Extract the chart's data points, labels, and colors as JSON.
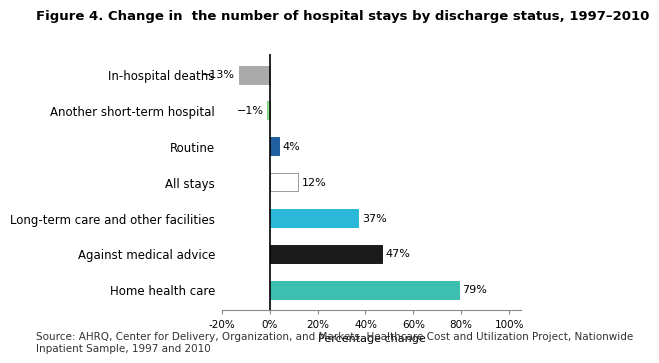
{
  "title": "Figure 4. Change in  the number of hospital stays by discharge status, 1997–2010",
  "categories": [
    "Home health care",
    "Against medical advice",
    "Long-term care and other facilities",
    "All stays",
    "Routine",
    "Another short-term hospital",
    "In-hospital deaths"
  ],
  "values": [
    79,
    47,
    37,
    12,
    4,
    -1,
    -13
  ],
  "bar_colors": [
    "#3CBFB0",
    "#1A1A1A",
    "#29B8D8",
    "#FFFFFF",
    "#2060A0",
    "#90EE90",
    "#AAAAAA"
  ],
  "bar_edgecolors": [
    "#3CBFB0",
    "#1A1A1A",
    "#29B8D8",
    "#999999",
    "#2060A0",
    "#88CC88",
    "#AAAAAA"
  ],
  "value_labels": [
    "79%",
    "47%",
    "37%",
    "12%",
    "4%",
    "−1%",
    "−13%"
  ],
  "xlabel": "Percentage change",
  "xlim": [
    -20,
    105
  ],
  "xtick_values": [
    -20,
    0,
    20,
    40,
    60,
    80,
    100
  ],
  "xtick_labels": [
    "-20%",
    "0%",
    "20%",
    "40%",
    "60%",
    "80%",
    "100%"
  ],
  "source_text": "Source: AHRQ, Center for Delivery, Organization, and Markets, Healthcare Cost and Utilization Project, Nationwide\nInpatient Sample, 1997 and 2010",
  "title_fontsize": 9.5,
  "label_fontsize": 8.5,
  "tick_fontsize": 8.5,
  "source_fontsize": 7.5,
  "bar_height": 0.5
}
